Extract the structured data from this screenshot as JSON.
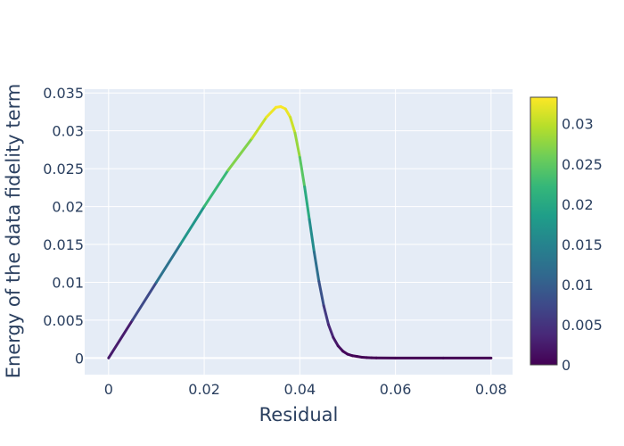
{
  "chart_data": {
    "type": "line",
    "xlabel": "Residual",
    "ylabel": "Energy of the data fidelity term",
    "xlim": [
      -0.005,
      0.0845
    ],
    "ylim": [
      -0.0022,
      0.0355
    ],
    "xticks": [
      0,
      0.02,
      0.04,
      0.06,
      0.08
    ],
    "xtick_labels": [
      "0",
      "0.02",
      "0.04",
      "0.06",
      "0.08"
    ],
    "yticks": [
      0,
      0.005,
      0.01,
      0.015,
      0.02,
      0.025,
      0.03,
      0.035
    ],
    "ytick_labels": [
      "0",
      "0.005",
      "0.01",
      "0.015",
      "0.02",
      "0.025",
      "0.03",
      "0.035"
    ],
    "grid": true,
    "plot_background": "#e5ecf6",
    "colorscale": "Viridis",
    "colorbar": {
      "range": [
        0,
        0.0333
      ],
      "ticks": [
        0,
        0.005,
        0.01,
        0.015,
        0.02,
        0.025,
        0.03
      ],
      "tick_labels": [
        "0",
        "0.005",
        "0.01",
        "0.015",
        "0.02",
        "0.025",
        "0.03"
      ]
    },
    "series": [
      {
        "x": [
          0,
          0.005,
          0.01,
          0.015,
          0.02,
          0.025,
          0.03,
          0.033,
          0.035,
          0.036,
          0.037,
          0.038,
          0.039,
          0.04,
          0.041,
          0.042,
          0.043,
          0.044,
          0.045,
          0.046,
          0.047,
          0.048,
          0.049,
          0.05,
          0.051,
          0.052,
          0.053,
          0.054,
          0.055,
          0.056,
          0.06,
          0.07,
          0.08
        ],
        "y": [
          0,
          0.005,
          0.01,
          0.015,
          0.02,
          0.0248,
          0.029,
          0.0318,
          0.0331,
          0.0332,
          0.0329,
          0.0318,
          0.0297,
          0.0265,
          0.0226,
          0.0183,
          0.014,
          0.0101,
          0.0069,
          0.0044,
          0.0027,
          0.0016,
          0.0009,
          0.0005,
          0.0003,
          0.0002,
          0.0001,
          5e-05,
          3e-05,
          1e-05,
          0,
          0,
          0
        ]
      }
    ]
  }
}
